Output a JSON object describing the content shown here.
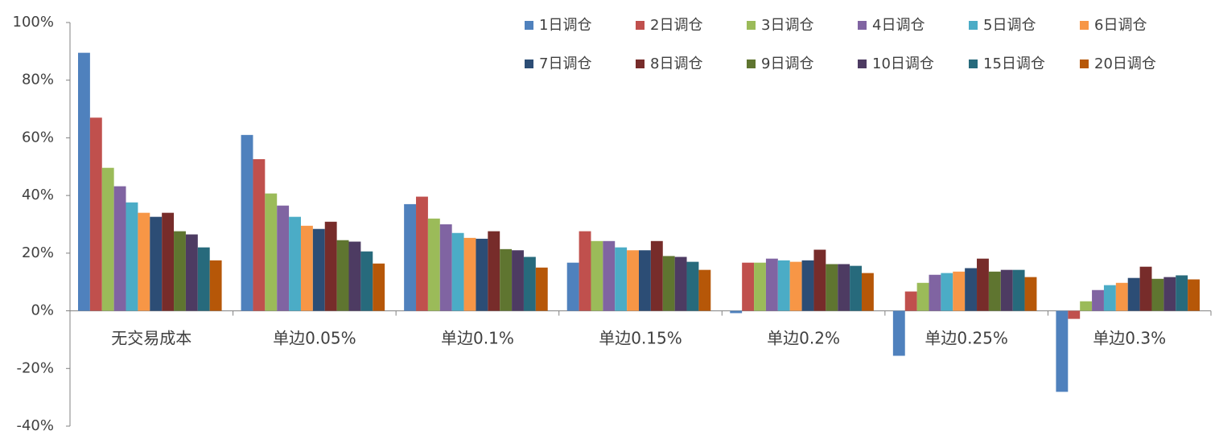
{
  "chart_data": {
    "type": "bar",
    "categories": [
      "无交易成本",
      "单边0.05%",
      "单边0.1%",
      "单边0.15%",
      "单边0.2%",
      "单边0.25%",
      "单边0.3%"
    ],
    "series": [
      {
        "name": "1日调仓",
        "color": "#4f81bd",
        "values": [
          89.5,
          61,
          37,
          16.7,
          -0.8,
          -15.6,
          -28.1
        ]
      },
      {
        "name": "2日调仓",
        "color": "#c0504d",
        "values": [
          67,
          52.6,
          39.6,
          27.6,
          16.7,
          6.7,
          -2.8
        ]
      },
      {
        "name": "3日调仓",
        "color": "#9bbb59",
        "values": [
          49.6,
          40.7,
          32,
          24.2,
          16.7,
          9.7,
          3.3
        ]
      },
      {
        "name": "4日调仓",
        "color": "#8064a2",
        "values": [
          43.2,
          36.5,
          30,
          24.2,
          18.1,
          12.5,
          7.2
        ]
      },
      {
        "name": "5日调仓",
        "color": "#4bacc6",
        "values": [
          37.6,
          32.6,
          27,
          22,
          17.5,
          13.1,
          8.9
        ]
      },
      {
        "name": "6日调仓",
        "color": "#f79646",
        "values": [
          34,
          29.5,
          25.3,
          21,
          17,
          13.6,
          9.7
        ]
      },
      {
        "name": "7日调仓",
        "color": "#2c4d75",
        "values": [
          32.6,
          28.4,
          25,
          21,
          17.5,
          14.8,
          11.4
        ]
      },
      {
        "name": "8日调仓",
        "color": "#772c2a",
        "values": [
          34,
          30.9,
          27.6,
          24.2,
          21.2,
          18.1,
          15.3
        ]
      },
      {
        "name": "9日调仓",
        "color": "#5f7530",
        "values": [
          27.6,
          24.5,
          21.4,
          19,
          16.2,
          13.6,
          11.1
        ]
      },
      {
        "name": "10日调仓",
        "color": "#4d3b62",
        "values": [
          26.5,
          24,
          21,
          18.7,
          16.2,
          14.2,
          11.7
        ]
      },
      {
        "name": "15日调仓",
        "color": "#276a7c",
        "values": [
          22,
          20.6,
          18.7,
          17,
          15.6,
          14.2,
          12.3
        ]
      },
      {
        "name": "20日调仓",
        "color": "#b65708",
        "values": [
          17.5,
          16.4,
          15,
          14.2,
          13.1,
          11.7,
          10.9
        ]
      }
    ],
    "ylim": [
      -40,
      100
    ],
    "yticks": [
      {
        "value": -40,
        "label": "-40%"
      },
      {
        "value": -20,
        "label": "-20%"
      },
      {
        "value": 0,
        "label": "0%"
      },
      {
        "value": 20,
        "label": "20%"
      },
      {
        "value": 40,
        "label": "40%"
      },
      {
        "value": 60,
        "label": "60%"
      },
      {
        "value": 80,
        "label": "80%"
      },
      {
        "value": 100,
        "label": "100%"
      }
    ],
    "grid": false,
    "legend": "top-right"
  }
}
